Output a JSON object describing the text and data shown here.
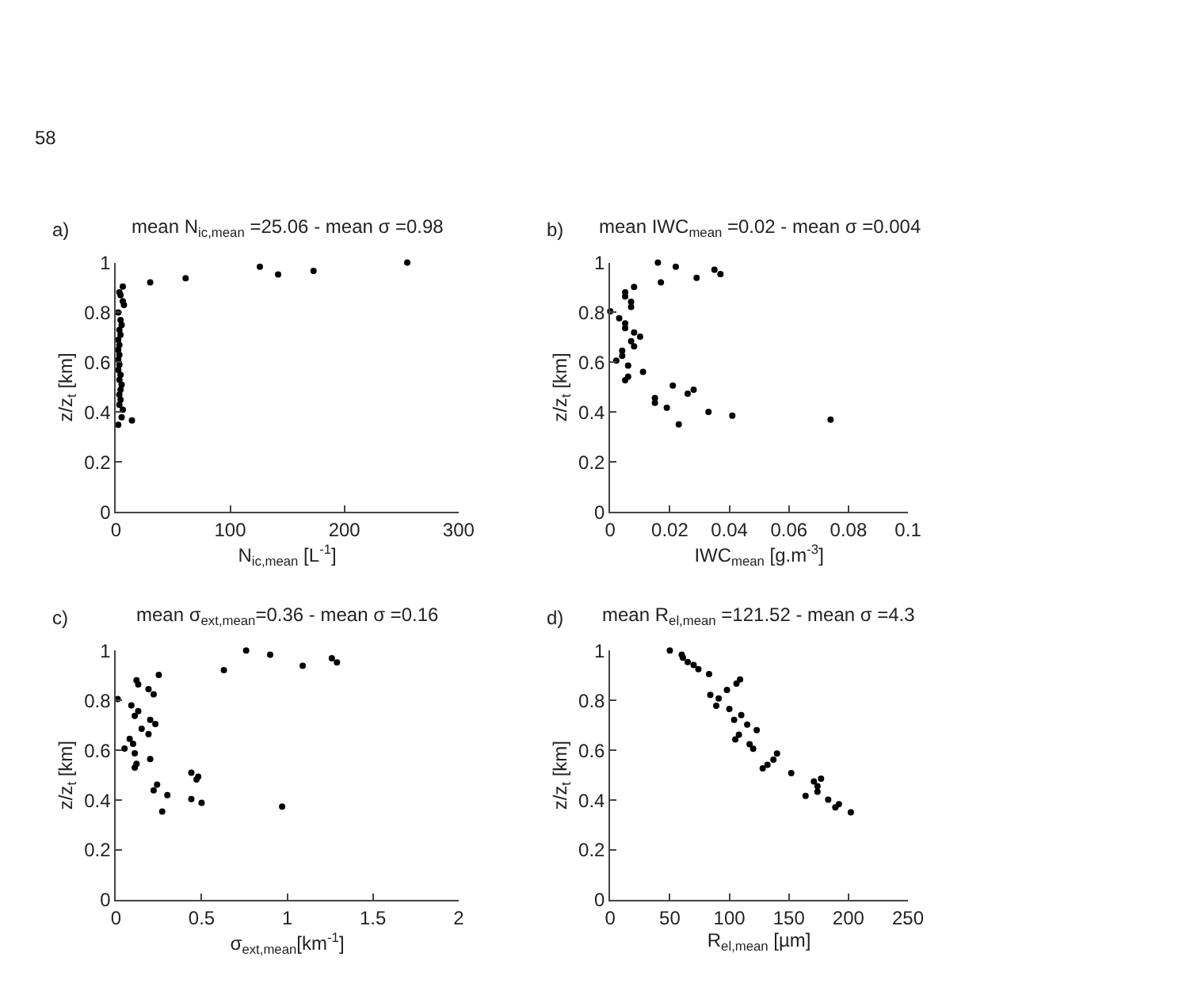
{
  "chart_data": [
    {
      "type": "scatter",
      "title": "mean N$_{ic,mean}$ =25.06 - mean σ =0.98",
      "xlabel": "N$_{ic,mean}$ [L$^{-1}$]",
      "ylabel": "z/z$_{t}$ [km]",
      "annotations": [
        "58",
        "a)"
      ],
      "marker": "circle",
      "xlim": [
        0,
        300
      ],
      "xticks": [
        0,
        100,
        200,
        300
      ],
      "ylim": [
        0,
        1
      ],
      "yticks": [
        0,
        0.2,
        0.4,
        0.6,
        0.8,
        1
      ],
      "series": [
        {
          "color": "#000000",
          "x": [
            255,
            126,
            173,
            142,
            61,
            30,
            6,
            3,
            4,
            6,
            7,
            2,
            4,
            5,
            3,
            4,
            2,
            3,
            2,
            3,
            2,
            3,
            2,
            4,
            3,
            5,
            4,
            3,
            4,
            3,
            6,
            5,
            14,
            2
          ],
          "values": [
            1.0,
            0.983,
            0.967,
            0.952,
            0.937,
            0.921,
            0.904,
            0.881,
            0.87,
            0.845,
            0.83,
            0.8,
            0.77,
            0.75,
            0.73,
            0.71,
            0.69,
            0.67,
            0.65,
            0.63,
            0.61,
            0.59,
            0.57,
            0.55,
            0.53,
            0.51,
            0.49,
            0.47,
            0.45,
            0.43,
            0.41,
            0.38,
            0.367,
            0.35
          ]
        }
      ]
    },
    {
      "type": "scatter",
      "title": "mean IWC$_{mean}$ =0.02 - mean σ =0.004",
      "xlabel": "IWC$_{mean}$ [g.m$^{-3}$]",
      "ylabel": "z/z$_{t}$ [km]",
      "annotations": [
        "b)"
      ],
      "marker": "circle",
      "xlim": [
        0,
        0.1
      ],
      "xticks": [
        0,
        0.02,
        0.04,
        0.06,
        0.08,
        0.1
      ],
      "ylim": [
        0,
        1
      ],
      "yticks": [
        0,
        0.2,
        0.4,
        0.6,
        0.8,
        1
      ],
      "series": [
        {
          "color": "#000000",
          "x": [
            0.016,
            0.022,
            0.035,
            0.037,
            0.029,
            0.017,
            0.008,
            0.005,
            0.005,
            0.007,
            0.007,
            0.0,
            0.003,
            0.005,
            0.005,
            0.008,
            0.01,
            0.007,
            0.008,
            0.004,
            0.004,
            0.002,
            0.006,
            0.011,
            0.006,
            0.005,
            0.021,
            0.028,
            0.026,
            0.015,
            0.015,
            0.019,
            0.033,
            0.041,
            0.074,
            0.023
          ],
          "values": [
            1.0,
            0.983,
            0.971,
            0.954,
            0.939,
            0.921,
            0.902,
            0.881,
            0.864,
            0.843,
            0.822,
            0.805,
            0.777,
            0.756,
            0.737,
            0.72,
            0.703,
            0.685,
            0.664,
            0.647,
            0.626,
            0.607,
            0.587,
            0.562,
            0.543,
            0.528,
            0.507,
            0.49,
            0.474,
            0.457,
            0.438,
            0.418,
            0.401,
            0.386,
            0.37,
            0.351
          ]
        }
      ]
    },
    {
      "type": "scatter",
      "title": "mean σ$_{ext,mean}$=0.36 - mean σ =0.16",
      "xlabel": "σ$_{ext,mean}$[km$^{-1}$]",
      "ylabel": "z/z$_{t}$ [km]",
      "annotations": [
        "c)"
      ],
      "marker": "circle",
      "xlim": [
        0,
        2
      ],
      "xticks": [
        0,
        0.5,
        1,
        1.5,
        2
      ],
      "ylim": [
        0,
        1
      ],
      "yticks": [
        0,
        0.2,
        0.4,
        0.6,
        0.8,
        1
      ],
      "series": [
        {
          "color": "#000000",
          "x": [
            0.76,
            0.9,
            1.26,
            1.29,
            1.09,
            0.63,
            0.25,
            0.12,
            0.13,
            0.19,
            0.22,
            0.01,
            0.09,
            0.13,
            0.11,
            0.2,
            0.23,
            0.15,
            0.19,
            0.08,
            0.1,
            0.05,
            0.11,
            0.2,
            0.12,
            0.11,
            0.44,
            0.48,
            0.47,
            0.24,
            0.22,
            0.3,
            0.44,
            0.5,
            0.97,
            0.27
          ],
          "values": [
            1.0,
            0.983,
            0.969,
            0.952,
            0.939,
            0.921,
            0.902,
            0.881,
            0.864,
            0.845,
            0.824,
            0.805,
            0.78,
            0.757,
            0.738,
            0.722,
            0.705,
            0.686,
            0.665,
            0.646,
            0.626,
            0.607,
            0.588,
            0.565,
            0.546,
            0.531,
            0.51,
            0.494,
            0.483,
            0.462,
            0.439,
            0.42,
            0.404,
            0.389,
            0.374,
            0.354
          ]
        }
      ]
    },
    {
      "type": "scatter",
      "title": "mean R$_{el,mean}$ =121.52 - mean σ =4.3",
      "xlabel": "R$_{el,mean}$ [µm]",
      "ylabel": "z/z$_{t}$ [km]",
      "annotations": [
        "d)"
      ],
      "marker": "circle",
      "xlim": [
        0,
        250
      ],
      "xticks": [
        0,
        50,
        100,
        150,
        200,
        250
      ],
      "ylim": [
        0,
        1
      ],
      "yticks": [
        0,
        0.2,
        0.4,
        0.6,
        0.8,
        1
      ],
      "series": [
        {
          "color": "#000000",
          "x": [
            50,
            60,
            61,
            65,
            70,
            74,
            83,
            109,
            106,
            98,
            84,
            91,
            89,
            100,
            104,
            110,
            115,
            123,
            108,
            105,
            117,
            120,
            140,
            137,
            132,
            128,
            152,
            177,
            171,
            174,
            174,
            164,
            183,
            192,
            189,
            202
          ],
          "values": [
            1.0,
            0.983,
            0.971,
            0.954,
            0.942,
            0.925,
            0.905,
            0.884,
            0.867,
            0.842,
            0.822,
            0.808,
            0.778,
            0.766,
            0.722,
            0.741,
            0.703,
            0.681,
            0.662,
            0.643,
            0.624,
            0.606,
            0.587,
            0.562,
            0.542,
            0.527,
            0.508,
            0.486,
            0.475,
            0.456,
            0.434,
            0.417,
            0.402,
            0.384,
            0.371,
            0.351
          ]
        }
      ]
    }
  ]
}
